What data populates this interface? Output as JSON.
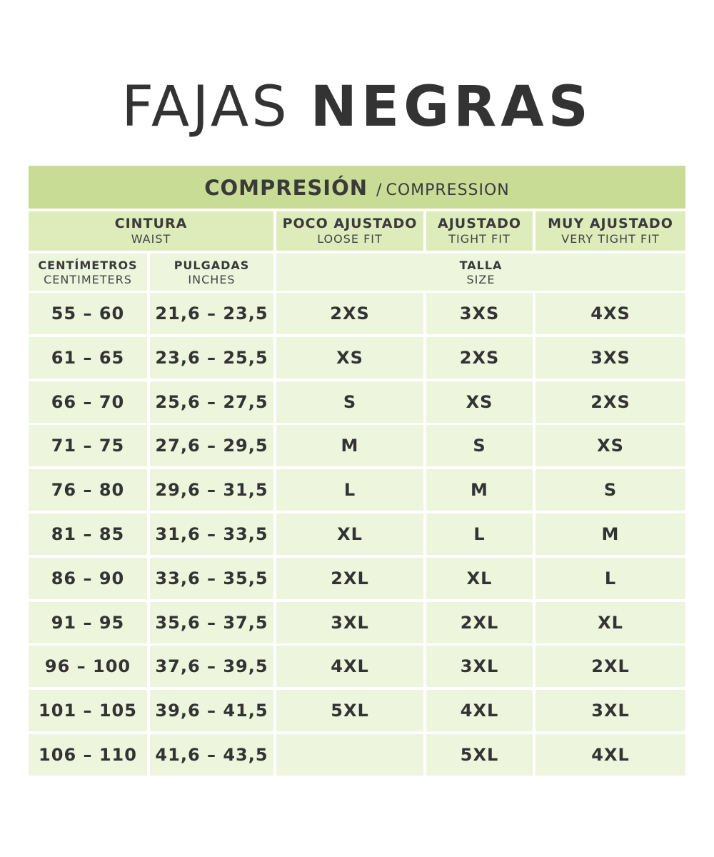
{
  "title": {
    "light": "FAJAS",
    "bold": "NEGRAS"
  },
  "table": {
    "banner": {
      "main": "COMPRESIÓN",
      "separator": "/",
      "sub": "COMPRESSION"
    },
    "header": {
      "waist": {
        "es": "CINTURA",
        "en": "WAIST"
      },
      "loose": {
        "es": "POCO AJUSTADO",
        "en": "LOOSE FIT"
      },
      "tight": {
        "es": "AJUSTADO",
        "en": "TIGHT FIT"
      },
      "very_tight": {
        "es": "MUY AJUSTADO",
        "en": "VERY TIGHT FIT"
      }
    },
    "subheader": {
      "cm": {
        "es": "CENTÍMETROS",
        "en": "CENTIMETERS"
      },
      "in": {
        "es": "PULGADAS",
        "en": "INCHES"
      },
      "size": {
        "es": "TALLA",
        "en": "SIZE"
      }
    },
    "rows": [
      {
        "cm": "55 – 60",
        "in": "21,6 – 23,5",
        "loose": "2XS",
        "tight": "3XS",
        "very_tight": "4XS"
      },
      {
        "cm": "61 – 65",
        "in": "23,6 – 25,5",
        "loose": "XS",
        "tight": "2XS",
        "very_tight": "3XS"
      },
      {
        "cm": "66 – 70",
        "in": "25,6 – 27,5",
        "loose": "S",
        "tight": "XS",
        "very_tight": "2XS"
      },
      {
        "cm": "71 – 75",
        "in": "27,6 – 29,5",
        "loose": "M",
        "tight": "S",
        "very_tight": "XS"
      },
      {
        "cm": "76 – 80",
        "in": "29,6 – 31,5",
        "loose": "L",
        "tight": "M",
        "very_tight": "S"
      },
      {
        "cm": "81 – 85",
        "in": "31,6 – 33,5",
        "loose": "XL",
        "tight": "L",
        "very_tight": "M"
      },
      {
        "cm": "86 – 90",
        "in": "33,6 – 35,5",
        "loose": "2XL",
        "tight": "XL",
        "very_tight": "L"
      },
      {
        "cm": "91 – 95",
        "in": "35,6 – 37,5",
        "loose": "3XL",
        "tight": "2XL",
        "very_tight": "XL"
      },
      {
        "cm": "96 – 100",
        "in": "37,6 – 39,5",
        "loose": "4XL",
        "tight": "3XL",
        "very_tight": "2XL"
      },
      {
        "cm": "101 – 105",
        "in": "39,6 – 41,5",
        "loose": "5XL",
        "tight": "4XL",
        "very_tight": "3XL"
      },
      {
        "cm": "106 – 110",
        "in": "41,6 – 43,5",
        "loose": "",
        "tight": "5XL",
        "very_tight": "4XL"
      }
    ],
    "colors": {
      "banner": "#c8dc96",
      "header": "#deebbb",
      "body": "#edf5dd",
      "text": "#333333"
    }
  }
}
